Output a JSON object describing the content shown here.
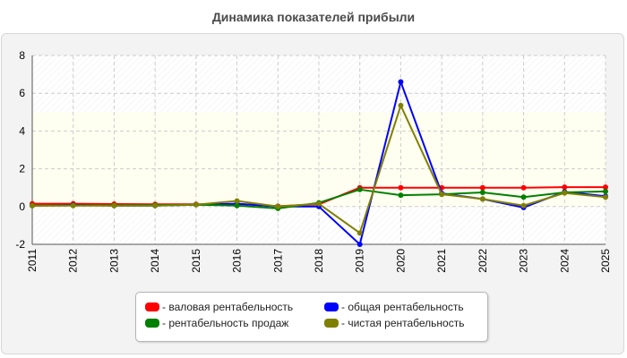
{
  "chart_data": {
    "type": "line",
    "title": "Динамика показателей прибыли",
    "categories": [
      "2011",
      "2012",
      "2013",
      "2014",
      "2015",
      "2016",
      "2017",
      "2018",
      "2019",
      "2020",
      "2021",
      "2022",
      "2023",
      "2024",
      "2025"
    ],
    "ylim": [
      -2,
      8
    ],
    "yticks": [
      "-2",
      "0",
      "2",
      "4",
      "6",
      "8"
    ],
    "grid": true,
    "legend_position": "bottom",
    "series": [
      {
        "name": "- валовая рентабельность",
        "color": "#ff0000",
        "values": [
          0.15,
          0.15,
          0.13,
          0.12,
          0.12,
          0.14,
          0.02,
          0.12,
          1.0,
          1.0,
          1.0,
          1.0,
          1.0,
          1.03,
          1.03
        ]
      },
      {
        "name": "- общая рентабельность",
        "color": "#0000ff",
        "values": [
          0.05,
          0.08,
          0.05,
          0.05,
          0.1,
          0.15,
          0.0,
          0.0,
          -2.0,
          6.6,
          0.7,
          0.4,
          -0.05,
          0.78,
          0.55
        ]
      },
      {
        "name": "- рентабельность продаж",
        "color": "#008000",
        "values": [
          0.05,
          0.06,
          0.07,
          0.08,
          0.1,
          0.05,
          -0.1,
          0.2,
          0.9,
          0.6,
          0.65,
          0.75,
          0.5,
          0.75,
          0.8
        ]
      },
      {
        "name": "- чистая рентабельность",
        "color": "#808000",
        "values": [
          0.05,
          0.05,
          0.05,
          0.05,
          0.1,
          0.3,
          0.0,
          0.15,
          -1.4,
          5.35,
          0.65,
          0.4,
          0.05,
          0.72,
          0.5
        ]
      }
    ]
  }
}
